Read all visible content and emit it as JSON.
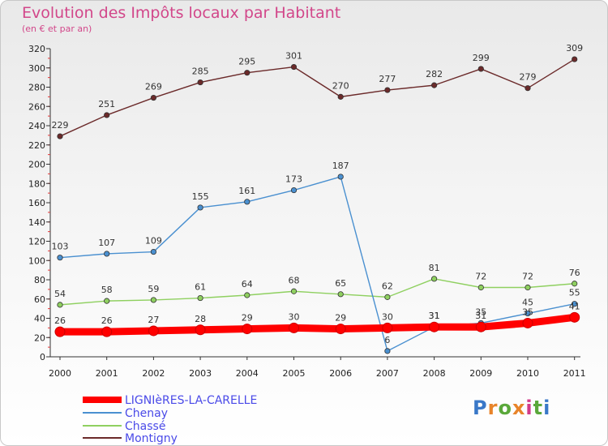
{
  "chart_data": {
    "type": "line",
    "title": "Evolution des Impôts locaux par Habitant",
    "subtitle": "(en € et par an)",
    "categories": [
      "2000",
      "2001",
      "2002",
      "2003",
      "2004",
      "2005",
      "2006",
      "2007",
      "2008",
      "2009",
      "2010",
      "2011"
    ],
    "ylim": [
      0,
      320
    ],
    "yticks": [
      0,
      20,
      40,
      60,
      80,
      100,
      120,
      140,
      160,
      180,
      200,
      220,
      240,
      260,
      280,
      300,
      320
    ],
    "grid": false,
    "legend_position": "bottom-left",
    "series": [
      {
        "name": "LIGNIèRES-LA-CARELLE",
        "color": "#ff0000",
        "values": [
          26,
          26,
          27,
          28,
          29,
          30,
          29,
          30,
          31,
          31,
          35,
          41
        ]
      },
      {
        "name": "Chenay",
        "color": "#4a90d0",
        "values": [
          103,
          107,
          109,
          155,
          161,
          173,
          187,
          6,
          31,
          35,
          45,
          55
        ]
      },
      {
        "name": "Chassé",
        "color": "#8fd060",
        "values": [
          54,
          58,
          59,
          61,
          64,
          68,
          65,
          62,
          81,
          72,
          72,
          76
        ]
      },
      {
        "name": "Montigny",
        "color": "#6b2a2a",
        "values": [
          229,
          251,
          269,
          285,
          295,
          301,
          270,
          277,
          282,
          299,
          279,
          309
        ]
      }
    ]
  },
  "logo": {
    "text": "Proxiti",
    "letters": [
      "P",
      "r",
      "o",
      "x",
      "i",
      "t",
      "i"
    ],
    "colors": [
      "#3a78c8",
      "#e8842a",
      "#5aa83a",
      "#e8842a",
      "#d23a8a",
      "#5aa83a",
      "#3a78c8"
    ]
  }
}
